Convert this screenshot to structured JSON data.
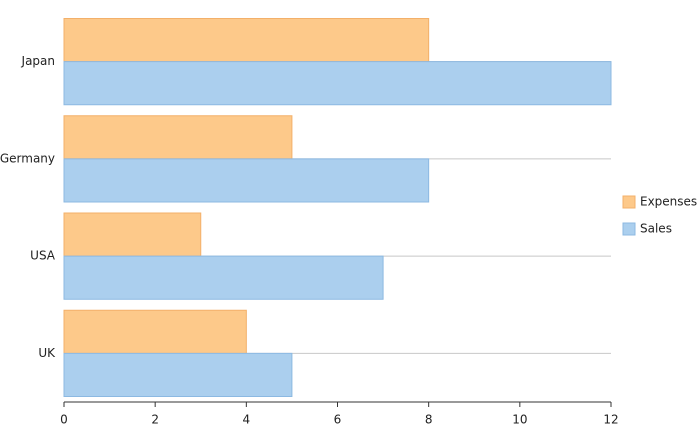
{
  "chart_data": {
    "type": "bar",
    "orientation": "horizontal",
    "categories": [
      "Japan",
      "Germany",
      "USA",
      "UK"
    ],
    "series": [
      {
        "name": "Expenses",
        "color": "#fdc98a",
        "values": [
          8,
          5,
          3,
          4
        ]
      },
      {
        "name": "Sales",
        "color": "#abcfee",
        "values": [
          12,
          8,
          7,
          5
        ]
      }
    ],
    "xlim": [
      0,
      12
    ],
    "xticks": [
      0,
      2,
      4,
      6,
      8,
      10,
      12
    ],
    "grid": true,
    "legend": "right"
  }
}
